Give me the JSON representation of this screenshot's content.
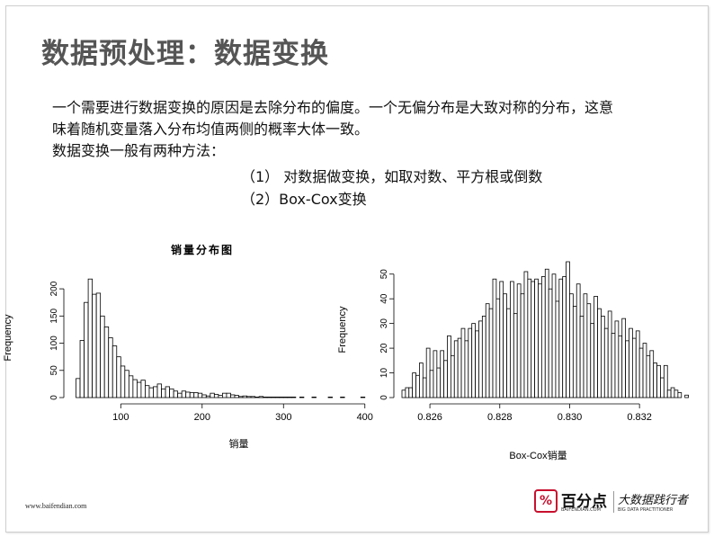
{
  "slide": {
    "title": "数据预处理：数据变换",
    "para_line1": "一个需要进行数据变换的原因是去除分布的偏度。一个无偏分布是大致对称的分布，这意",
    "para_line2": "味着随机变量落入分布均值两侧的概率大体一致。",
    "para_line3": "数据变换一般有两种方法：",
    "method1": "（1） 对数据做变换，如取对数、平方根或倒数",
    "method2": "（2）Box-Cox变换"
  },
  "footer": {
    "url": "www.baifendian.com",
    "logo_mark": "%",
    "logo_name": "百分点",
    "logo_domain": "BAIFENDIAN.COM",
    "logo_slogan": "大数据践行者",
    "logo_slogan_en": "BIG DATA PRACTITIONER"
  },
  "chart_data": [
    {
      "type": "bar",
      "title": "销量分布图",
      "xlabel": "销量",
      "ylabel": "Frequency",
      "xlim": [
        40,
        450
      ],
      "ylim": [
        0,
        220
      ],
      "x_ticks": [
        "100",
        "200",
        "300",
        "400"
      ],
      "x_tick_values": [
        100,
        200,
        300,
        400
      ],
      "y_ticks": [
        "0",
        "50",
        "100",
        "150",
        "200"
      ],
      "y_tick_values": [
        0,
        50,
        100,
        150,
        200
      ],
      "bin_start": 45,
      "bin_width": 5,
      "values": [
        35,
        105,
        175,
        218,
        190,
        192,
        150,
        130,
        110,
        95,
        75,
        58,
        50,
        40,
        33,
        28,
        32,
        22,
        18,
        20,
        25,
        16,
        20,
        16,
        12,
        8,
        12,
        10,
        9,
        9,
        8,
        5,
        3,
        8,
        6,
        4,
        8,
        8,
        5,
        4,
        2,
        3,
        2,
        2,
        1,
        2,
        1,
        1,
        1,
        1,
        1,
        1,
        1,
        1,
        0,
        1,
        0,
        0,
        1,
        0,
        0,
        0,
        1,
        0,
        0,
        1,
        0,
        0,
        0,
        0,
        1
      ]
    },
    {
      "type": "bar",
      "title": "",
      "xlabel": "Box-Cox销量",
      "ylabel": "Frequency",
      "xlim": [
        0.8252,
        0.833
      ],
      "ylim": [
        0,
        55
      ],
      "x_ticks": [
        "0.826",
        "0.828",
        "0.830",
        "0.832"
      ],
      "x_tick_values": [
        0.826,
        0.828,
        0.83,
        0.832
      ],
      "y_ticks": [
        "0",
        "10",
        "20",
        "30",
        "40",
        "50"
      ],
      "y_tick_values": [
        0,
        10,
        20,
        30,
        40,
        50
      ],
      "bin_start": 0.8252,
      "bin_width": 0.0001,
      "values": [
        3,
        4,
        4,
        10,
        9,
        14,
        8,
        20,
        11,
        19,
        12,
        19,
        15,
        25,
        17,
        23,
        24,
        28,
        23,
        28,
        30,
        27,
        31,
        33,
        38,
        36,
        48,
        40,
        47,
        42,
        36,
        47,
        34,
        46,
        42,
        51,
        48,
        47,
        48,
        46,
        49,
        52,
        44,
        50,
        39,
        48,
        49,
        55,
        42,
        37,
        46,
        33,
        42,
        38,
        30,
        41,
        36,
        33,
        28,
        35,
        26,
        31,
        25,
        32,
        23,
        28,
        24,
        27,
        20,
        22,
        17,
        19,
        14,
        13,
        8,
        13,
        3,
        4,
        3,
        2,
        0,
        1
      ]
    }
  ]
}
